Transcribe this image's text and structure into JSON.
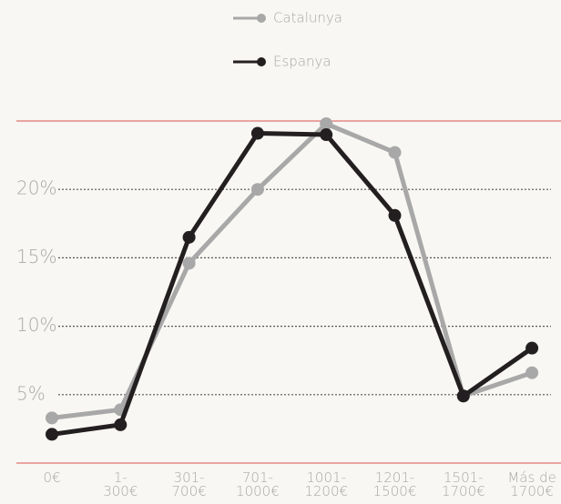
{
  "chart_data": {
    "type": "line",
    "categories": [
      "0€",
      "1-\n300€",
      "301-\n700€",
      "701-\n1000€",
      "1001-\n1200€",
      "1201-\n1500€",
      "1501-\n1700€",
      "Más de\n1700€"
    ],
    "series": [
      {
        "name": "Catalunya",
        "color": "#a8a8a8",
        "values": [
          3.3,
          3.9,
          14.6,
          20.0,
          24.8,
          22.7,
          4.9,
          6.6
        ]
      },
      {
        "name": "Espanya",
        "color": "#231f20",
        "values": [
          2.1,
          2.8,
          16.5,
          24.1,
          24.0,
          18.1,
          4.9,
          8.4
        ]
      }
    ],
    "ylim": [
      0,
      25
    ],
    "yticks": [
      {
        "value": 5,
        "label": "5%"
      },
      {
        "value": 10,
        "label": "10%"
      },
      {
        "value": 15,
        "label": "15%"
      },
      {
        "value": 20,
        "label": "20%"
      }
    ],
    "grid": true,
    "legend": "top"
  }
}
